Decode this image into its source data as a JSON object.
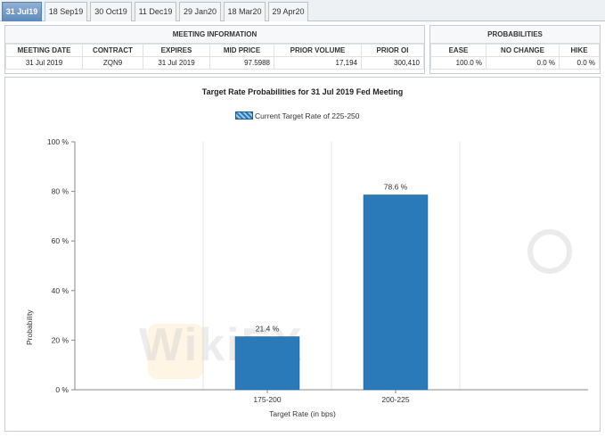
{
  "tabs": [
    {
      "label": "31 Jul19",
      "active": true
    },
    {
      "label": "18 Sep19",
      "active": false
    },
    {
      "label": "30 Oct19",
      "active": false
    },
    {
      "label": "11 Dec19",
      "active": false
    },
    {
      "label": "29 Jan20",
      "active": false
    },
    {
      "label": "18 Mar20",
      "active": false
    },
    {
      "label": "29 Apr20",
      "active": false
    }
  ],
  "meeting_info": {
    "title": "MEETING INFORMATION",
    "headers": {
      "meeting_date": "MEETING DATE",
      "contract": "CONTRACT",
      "expires": "EXPIRES",
      "mid_price": "MID PRICE",
      "prior_volume": "PRIOR VOLUME",
      "prior_oi": "PRIOR OI"
    },
    "row": {
      "meeting_date": "31 Jul 2019",
      "contract": "ZQN9",
      "expires": "31 Jul 2019",
      "mid_price": "97.5988",
      "prior_volume": "17,194",
      "prior_oi": "300,410"
    }
  },
  "probabilities": {
    "title": "PROBABILITIES",
    "headers": {
      "ease": "EASE",
      "no_change": "NO CHANGE",
      "hike": "HIKE"
    },
    "row": {
      "ease": "100.0 %",
      "no_change": "0.0 %",
      "hike": "0.0 %"
    }
  },
  "watermark": {
    "text": "WikiFX"
  },
  "chart_data": {
    "type": "bar",
    "title": "Target Rate Probabilities for 31 Jul 2019 Fed Meeting",
    "legend": [
      "Current Target Rate of 225-250"
    ],
    "legend_position": "top-center",
    "xlabel": "Target Rate (in bps)",
    "ylabel": "Probability",
    "categories": [
      "175-200",
      "200-225"
    ],
    "values": [
      21.4,
      78.6
    ],
    "data_labels": [
      "21.4 %",
      "78.6 %"
    ],
    "ylim": [
      0,
      100
    ],
    "yticks": [
      0,
      20,
      40,
      60,
      80,
      100
    ],
    "ytick_labels": [
      "0 %",
      "20 %",
      "40 %",
      "60 %",
      "80 %",
      "100 %"
    ],
    "grid": "vertical",
    "bar_color": "#2a7ab9"
  }
}
